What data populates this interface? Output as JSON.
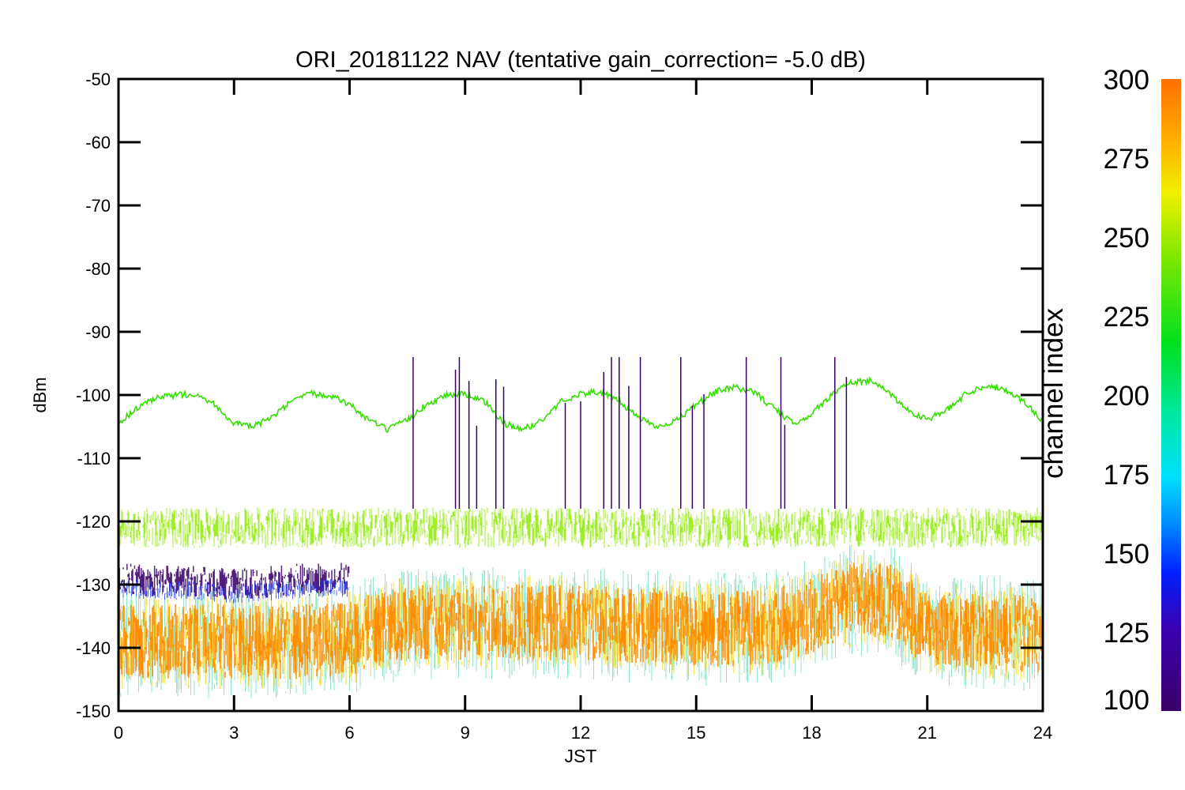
{
  "chart_data": {
    "type": "line",
    "title": "ORI_20181122 NAV (tentative gain_correction= -5.0 dB)",
    "xlabel": "JST",
    "ylabel": "dBm",
    "xlim": [
      0,
      24
    ],
    "ylim": [
      -150,
      -50
    ],
    "x_ticks": [
      "0",
      "3",
      "6",
      "9",
      "12",
      "15",
      "18",
      "21",
      "24"
    ],
    "y_ticks": [
      "-50",
      "-60",
      "-70",
      "-80",
      "-90",
      "-100",
      "-110",
      "-120",
      "-130",
      "-140",
      "-150"
    ],
    "colorbar": {
      "label": "channel index",
      "range": [
        100,
        300
      ],
      "ticks": [
        "300",
        "275",
        "250",
        "225",
        "200",
        "175",
        "150",
        "125",
        "100"
      ]
    },
    "series": [
      {
        "channel_index": 230,
        "color": "#33e000",
        "x": [
          0,
          0.5,
          1,
          1.5,
          2,
          2.5,
          3,
          3.5,
          4,
          4.5,
          5,
          5.5,
          6,
          6.5,
          7,
          7.5,
          8,
          8.5,
          9,
          9.5,
          10,
          10.5,
          11,
          11.5,
          12,
          12.5,
          13,
          13.5,
          14,
          14.5,
          15,
          15.5,
          16,
          16.5,
          17,
          17.5,
          18,
          18.5,
          19,
          19.5,
          20,
          20.5,
          21,
          21.5,
          22,
          22.5,
          23,
          23.5,
          24
        ],
        "y": [
          -104.5,
          -102,
          -100.5,
          -100,
          -99.8,
          -101.5,
          -104.5,
          -105,
          -103.5,
          -101,
          -99.8,
          -100,
          -101.5,
          -104,
          -105.5,
          -104,
          -101.5,
          -100,
          -99.8,
          -101,
          -104.5,
          -105.5,
          -104,
          -101,
          -99.8,
          -99.5,
          -101,
          -103.5,
          -105,
          -104,
          -101.5,
          -99.5,
          -98.8,
          -99.5,
          -102,
          -104.5,
          -103,
          -100,
          -98,
          -97.8,
          -99.5,
          -102.5,
          -103.8,
          -102.5,
          -99.8,
          -98.5,
          -99,
          -101,
          -104
        ]
      },
      {
        "channel_index": 255,
        "color": "#96ec14",
        "x": [
          0,
          1,
          2,
          3,
          4,
          5,
          6,
          7,
          8,
          9,
          10,
          11,
          12,
          13,
          14,
          15,
          16,
          17,
          18,
          19,
          20,
          21,
          22,
          23,
          24
        ],
        "y": [
          -121,
          -121,
          -121,
          -121,
          -121,
          -121,
          -121,
          -121,
          -121,
          -121,
          -121,
          -121,
          -121,
          -121,
          -121,
          -121,
          -121,
          -121,
          -121,
          -121,
          -121,
          -121,
          -121,
          -121,
          -121
        ]
      },
      {
        "channel_index": 285,
        "color": "#ff8c00",
        "x": [
          0,
          1,
          2,
          3,
          4,
          5,
          6,
          7,
          8,
          9,
          10,
          11,
          12,
          13,
          14,
          15,
          16,
          17,
          18,
          19,
          20,
          21,
          22,
          23,
          24
        ],
        "y": [
          -139,
          -139,
          -139,
          -139,
          -139,
          -139,
          -138.5,
          -136.5,
          -136,
          -136,
          -136,
          -136,
          -136,
          -136.5,
          -136.5,
          -137,
          -137,
          -136.5,
          -135,
          -132.5,
          -132.5,
          -137,
          -137.5,
          -137.5,
          -138
        ]
      },
      {
        "channel_index": 110,
        "color": "#3a0068",
        "x": [
          0,
          1,
          2,
          3,
          4,
          5,
          6
        ],
        "y": [
          -129,
          -129.5,
          -129.5,
          -130,
          -129.5,
          -129,
          -129
        ]
      }
    ]
  }
}
